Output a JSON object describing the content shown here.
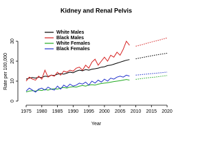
{
  "chart_data": {
    "type": "line",
    "title": "Kidney and Renal Pelvis",
    "x_label": "Year",
    "y_label": "Rate per 100,000",
    "x": [
      1975,
      1976,
      1977,
      1978,
      1979,
      1980,
      1981,
      1982,
      1983,
      1984,
      1985,
      1986,
      1987,
      1988,
      1989,
      1990,
      1991,
      1992,
      1993,
      1994,
      1995,
      1996,
      1997,
      1998,
      1999,
      2000,
      2001,
      2002,
      2003,
      2004,
      2005,
      2006,
      2007,
      2008
    ],
    "projection_x": [
      2010,
      2012,
      2014,
      2016,
      2018,
      2020
    ],
    "xlim": [
      1973,
      2021
    ],
    "xticks": [
      1975,
      1980,
      1985,
      1990,
      1995,
      2000,
      2005,
      2010,
      2015,
      2020
    ],
    "ylim": [
      -1,
      33
    ],
    "yticks": [
      0,
      10,
      20,
      30
    ],
    "series": [
      {
        "name": "White Males",
        "color": "#000000",
        "values": [
          11,
          11.5,
          11.8,
          11.5,
          12,
          11.8,
          12.5,
          12.3,
          13,
          12.8,
          13.5,
          13.8,
          13.5,
          14,
          14.5,
          14.2,
          15,
          15.5,
          15.2,
          15.8,
          15.5,
          16,
          16.2,
          16.5,
          17,
          17.2,
          17.8,
          18,
          18.5,
          19,
          19.5,
          20,
          20.5,
          20.8
        ],
        "projection": [
          21.2,
          21.8,
          22.4,
          23,
          23.5,
          24
        ]
      },
      {
        "name": "Black Males",
        "color": "#d62020",
        "values": [
          10,
          12,
          11,
          10.5,
          12.5,
          11,
          15.5,
          12,
          13,
          12.5,
          14.5,
          13,
          15,
          14.5,
          15.5,
          15,
          16.5,
          17,
          15.5,
          18,
          16.5,
          19.5,
          21,
          18,
          20,
          22,
          20,
          23,
          22,
          24.5,
          23,
          26,
          30,
          28
        ],
        "projection": [
          27.5,
          28.3,
          29.2,
          30,
          30.8,
          31.7
        ]
      },
      {
        "name": "White Females",
        "color": "#22aa22",
        "values": [
          4.5,
          5,
          5.2,
          5,
          5.5,
          5.3,
          5.8,
          5.5,
          6,
          6.2,
          6,
          6.5,
          6.8,
          6.5,
          7,
          7.2,
          7,
          7.5,
          7.8,
          7.5,
          8,
          8.2,
          8,
          8.5,
          8.8,
          9,
          9.2,
          9.5,
          9.8,
          10,
          10.2,
          10.5,
          10.8,
          10.5
        ],
        "projection": [
          10.9,
          11.3,
          11.7,
          12,
          12.4,
          12.8
        ]
      },
      {
        "name": "Black Females",
        "color": "#2233cc",
        "values": [
          5,
          6.5,
          5.5,
          4.5,
          6,
          6.5,
          5.5,
          7,
          6,
          5.5,
          7.5,
          6,
          8,
          7,
          8.5,
          7.5,
          8,
          9,
          8.5,
          9.5,
          8,
          10,
          9,
          10.5,
          9.5,
          11,
          10,
          11.5,
          11,
          12,
          12.5,
          12,
          13,
          12.5
        ],
        "projection": [
          13,
          13.3,
          13.6,
          13.9,
          14.2,
          14.5
        ]
      }
    ]
  }
}
